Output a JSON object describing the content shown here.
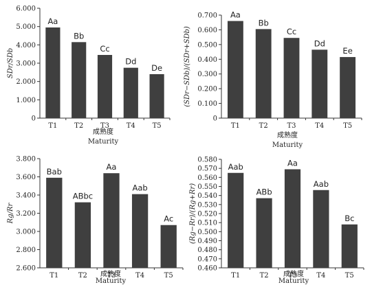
{
  "chart_data": [
    {
      "type": "bar",
      "ylabel": "SDr/SDb",
      "xlabel_cn": "成熟度",
      "xlabel_en": "Maturity",
      "categories": [
        "T1",
        "T2",
        "T3",
        "T4",
        "T5"
      ],
      "values": [
        4.95,
        4.15,
        3.45,
        2.75,
        2.4
      ],
      "labels": [
        "Aa",
        "Bb",
        "Cc",
        "Dd",
        "De"
      ],
      "ylim": [
        0,
        6
      ],
      "yticks": [
        0,
        1,
        2,
        3,
        4,
        5,
        6
      ],
      "ytick_labels": [
        "0",
        "1.000",
        "2.000",
        "3.000",
        "4.000",
        "5.000",
        "6.000"
      ],
      "grid": false
    },
    {
      "type": "bar",
      "ylabel": "(SDr−SDb)/(SDr+SDb)",
      "xlabel_cn": "成熟度",
      "xlabel_en": "Maturity",
      "categories": [
        "T1",
        "T2",
        "T3",
        "T4",
        "T5"
      ],
      "values": [
        0.66,
        0.605,
        0.545,
        0.465,
        0.415
      ],
      "labels": [
        "Aa",
        "Bb",
        "Cc",
        "Dd",
        "Ee"
      ],
      "ylim": [
        0,
        0.7
      ],
      "yticks": [
        0,
        0.1,
        0.2,
        0.3,
        0.4,
        0.5,
        0.6,
        0.7
      ],
      "ytick_labels": [
        "0",
        "0.100",
        "0.200",
        "0.300",
        "0.400",
        "0.500",
        "0.600",
        "0.700"
      ],
      "grid": false
    },
    {
      "type": "bar",
      "ylabel": "Rg/Rr",
      "xlabel_cn": "成熟度",
      "xlabel_en": "Maturity",
      "categories": [
        "T1",
        "T2",
        "T3",
        "T4",
        "T5"
      ],
      "values": [
        3.59,
        3.32,
        3.64,
        3.41,
        3.07
      ],
      "labels": [
        "Bab",
        "ABbc",
        "Aa",
        "Aab",
        "Ac"
      ],
      "ylim": [
        2.6,
        3.8
      ],
      "yticks": [
        2.6,
        2.8,
        3.0,
        3.2,
        3.4,
        3.6,
        3.8
      ],
      "ytick_labels": [
        "2.600",
        "2.800",
        "3.000",
        "3.200",
        "3.400",
        "3.600",
        "3.800"
      ],
      "grid": false
    },
    {
      "type": "bar",
      "ylabel": "(Rg−Rr)/(Rg+Rr)",
      "xlabel_cn": "成熟度",
      "xlabel_en": "Maturity",
      "categories": [
        "T1",
        "T2",
        "T3",
        "T4",
        "T5"
      ],
      "values": [
        0.565,
        0.537,
        0.569,
        0.546,
        0.508
      ],
      "labels": [
        "Aab",
        "ABb",
        "Aa",
        "Aab",
        "Bc"
      ],
      "ylim": [
        0.46,
        0.58
      ],
      "yticks": [
        0.46,
        0.47,
        0.48,
        0.49,
        0.5,
        0.51,
        0.52,
        0.53,
        0.54,
        0.55,
        0.56,
        0.57,
        0.58
      ],
      "ytick_labels": [
        "0.460",
        "0.470",
        "0.480",
        "0.490",
        "0.500",
        "0.510",
        "0.520",
        "0.530",
        "0.540",
        "0.550",
        "0.560",
        "0.570",
        "0.580"
      ],
      "grid": false
    }
  ]
}
